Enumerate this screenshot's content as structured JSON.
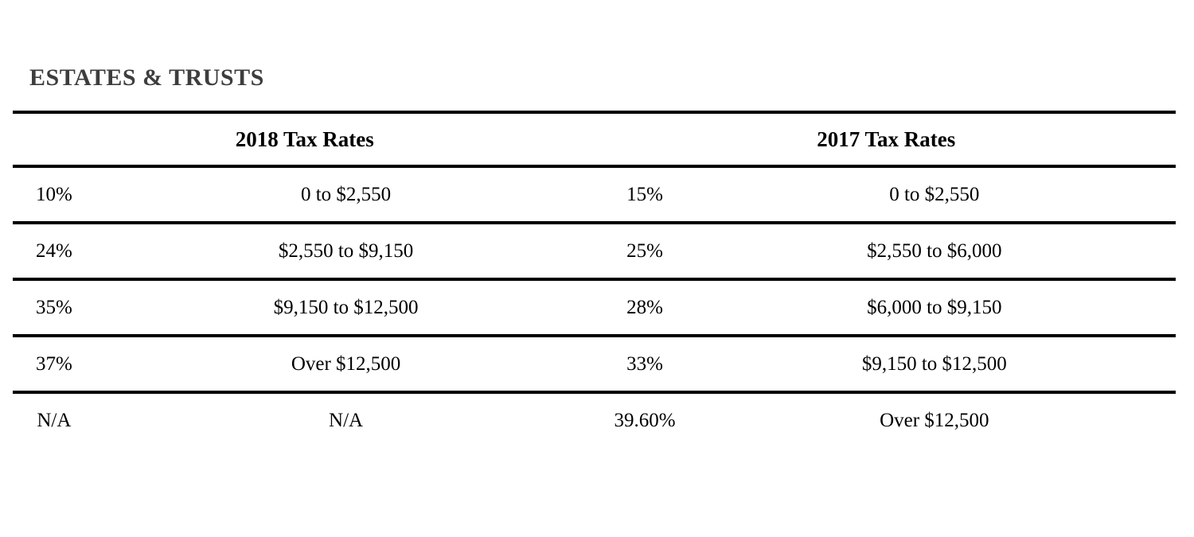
{
  "page": {
    "title": "ESTATES & TRUSTS"
  },
  "colors": {
    "background": "#ffffff",
    "title_text": "#3d3d3d",
    "body_text": "#000000",
    "rule": "#000000"
  },
  "table": {
    "headers": {
      "col_2018": "2018 Tax Rates",
      "col_2017": "2017 Tax Rates"
    },
    "rows": [
      {
        "rate_2018": "10%",
        "bracket_2018": "0 to $2,550",
        "rate_2017": "15%",
        "bracket_2017": "0 to $2,550"
      },
      {
        "rate_2018": "24%",
        "bracket_2018": "$2,550 to $9,150",
        "rate_2017": "25%",
        "bracket_2017": "$2,550 to $6,000"
      },
      {
        "rate_2018": "35%",
        "bracket_2018": "$9,150 to $12,500",
        "rate_2017": "28%",
        "bracket_2017": "$6,000 to $9,150"
      },
      {
        "rate_2018": "37%",
        "bracket_2018": "Over $12,500",
        "rate_2017": "33%",
        "bracket_2017": "$9,150 to $12,500"
      },
      {
        "rate_2018": "N/A",
        "bracket_2018": "N/A",
        "rate_2017": "39.60%",
        "bracket_2017": "Over $12,500"
      }
    ]
  }
}
